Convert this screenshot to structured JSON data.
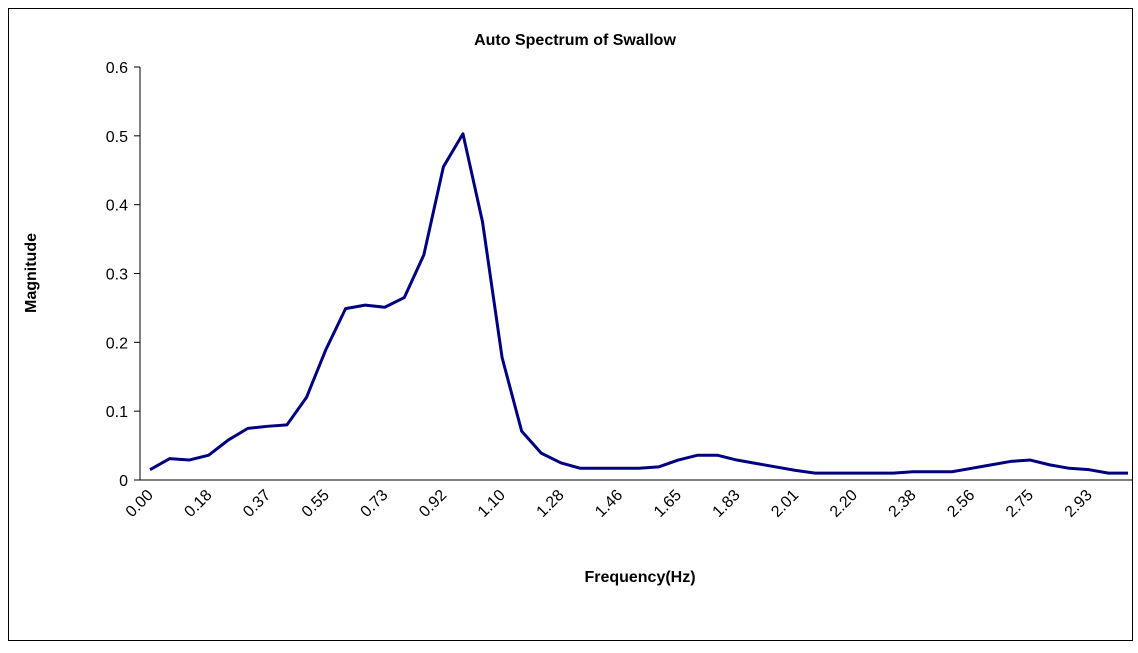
{
  "chart_data": {
    "type": "line",
    "title": "Auto Spectrum of Swallow",
    "x_label": "Frequency(Hz)",
    "y_label": "Magnitude",
    "categories": [
      "0.00",
      null,
      null,
      "0.18",
      null,
      null,
      "0.37",
      null,
      null,
      "0.55",
      null,
      null,
      "0.73",
      null,
      null,
      "0.92",
      null,
      null,
      "1.10",
      null,
      null,
      "1.28",
      null,
      null,
      "1.46",
      null,
      null,
      "1.65",
      null,
      null,
      "1.83",
      null,
      null,
      "2.01",
      null,
      null,
      "2.20",
      null,
      null,
      "2.38",
      null,
      null,
      "2.56",
      null,
      null,
      "2.75",
      null,
      null,
      "2.93",
      null,
      null
    ],
    "values": [
      0.015,
      0.031,
      0.029,
      0.036,
      0.058,
      0.075,
      0.078,
      0.08,
      0.12,
      0.19,
      0.249,
      0.254,
      0.251,
      0.265,
      0.327,
      0.455,
      0.503,
      0.375,
      0.178,
      0.071,
      0.039,
      0.025,
      0.017,
      0.017,
      0.017,
      0.017,
      0.019,
      0.029,
      0.036,
      0.036,
      0.029,
      0.024,
      0.019,
      0.014,
      0.01,
      0.01,
      0.01,
      0.01,
      0.01,
      0.012,
      0.012,
      0.012,
      0.017,
      0.022,
      0.027,
      0.029,
      0.022,
      0.017,
      0.015,
      0.01,
      0.01
    ],
    "color": "#000080",
    "ylim": [
      0,
      0.6
    ],
    "yticks": [
      {
        "value": 0,
        "label": "0"
      },
      0.1,
      0.2,
      0.3,
      0.4,
      0.5,
      0.6
    ],
    "grid": false
  }
}
